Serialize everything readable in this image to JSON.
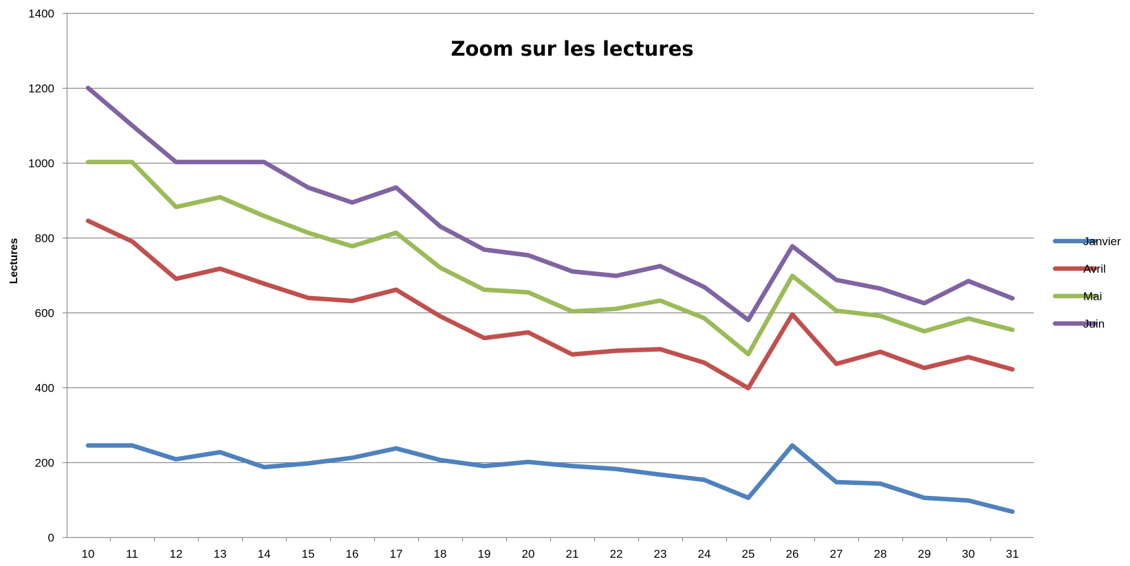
{
  "chart_data": {
    "type": "line",
    "title": "Zoom sur les lectures",
    "xlabel": "",
    "ylabel": "Lectures",
    "ylim": [
      0,
      1400
    ],
    "yticks": [
      0,
      200,
      400,
      600,
      800,
      1000,
      1200,
      1400
    ],
    "grid": true,
    "legend_position": "right",
    "categories": [
      "10",
      "11",
      "12",
      "13",
      "14",
      "15",
      "16",
      "17",
      "18",
      "19",
      "20",
      "21",
      "22",
      "23",
      "24",
      "25",
      "26",
      "27",
      "28",
      "29",
      "30",
      "31"
    ],
    "series": [
      {
        "name": "Janvier",
        "color": "#4F81BD",
        "values": [
          245,
          245,
          208,
          227,
          187,
          197,
          212,
          237,
          206,
          190,
          201,
          190,
          182,
          167,
          153,
          105,
          245,
          147,
          143,
          105,
          98,
          68
        ]
      },
      {
        "name": "Avril",
        "color": "#C0504D",
        "values": [
          845,
          790,
          690,
          717,
          677,
          639,
          631,
          661,
          590,
          532,
          547,
          488,
          498,
          502,
          466,
          398,
          595,
          463,
          495,
          452,
          481,
          448
        ]
      },
      {
        "name": "Mai",
        "color": "#9BBB59",
        "values": [
          1002,
          1002,
          882,
          908,
          858,
          813,
          777,
          813,
          720,
          661,
          654,
          603,
          610,
          632,
          585,
          489,
          698,
          605,
          591,
          550,
          584,
          554
        ]
      },
      {
        "name": "Juin",
        "color": "#8064A2",
        "values": [
          1200,
          1100,
          1002,
          1002,
          1002,
          934,
          894,
          934,
          830,
          768,
          753,
          710,
          698,
          724,
          668,
          580,
          777,
          687,
          664,
          625,
          684,
          638
        ]
      }
    ]
  }
}
